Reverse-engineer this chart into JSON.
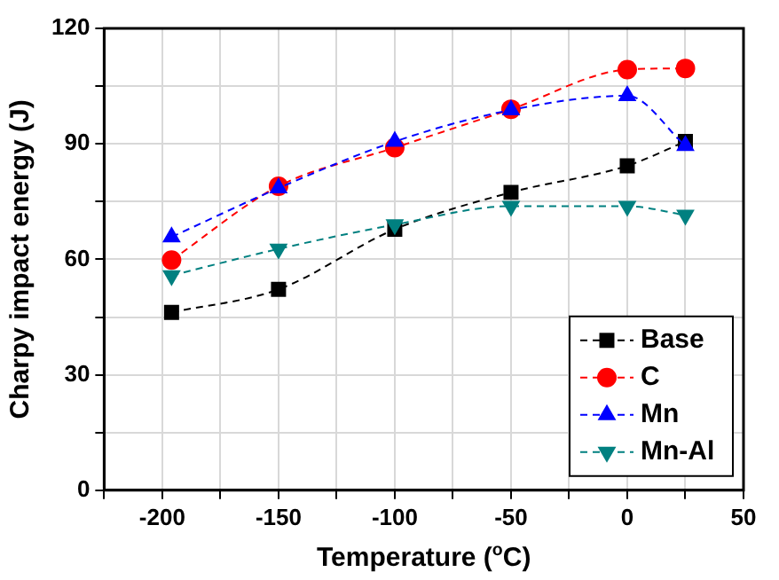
{
  "chart_data": {
    "type": "line",
    "xlabel": "Temperature ($^{o}$C)",
    "ylabel": "Charpy impact energy (J)",
    "x": [
      -196,
      -150,
      -100,
      -50,
      0,
      25
    ],
    "series": [
      {
        "name": "Base",
        "color": "#000000",
        "marker": "square",
        "values": [
          46.2,
          52.2,
          67.8,
          77.4,
          84.3,
          90.6
        ]
      },
      {
        "name": "C",
        "color": "#ff0000",
        "marker": "circle",
        "values": [
          59.8,
          79,
          89,
          99,
          109.3,
          109.6
        ]
      },
      {
        "name": "Mn",
        "color": "#0000ff",
        "marker": "triangle",
        "values": [
          65.8,
          78.5,
          90.6,
          98.8,
          102.5,
          89.5
        ]
      },
      {
        "name": "Mn-Al",
        "color": "#008080",
        "marker": "triangle-down",
        "values": [
          55.8,
          62.7,
          69,
          73.8,
          73.8,
          71.5
        ]
      }
    ],
    "xlim": [
      -225,
      50
    ],
    "xticks": [
      {
        "value": -225,
        "label": null
      },
      -200,
      {
        "value": -175,
        "label": null
      },
      -150,
      {
        "value": -125,
        "label": null
      },
      -100,
      {
        "value": -75,
        "label": null
      },
      -50,
      {
        "value": -25,
        "label": null
      },
      0,
      {
        "value": 25,
        "label": null
      },
      50
    ],
    "ylim": [
      0,
      120
    ],
    "yticks": [
      0,
      {
        "value": 15,
        "label": null
      },
      30,
      {
        "value": 45,
        "label": null
      },
      60,
      {
        "value": 75,
        "label": null
      },
      90,
      {
        "value": 105,
        "label": null
      },
      120
    ],
    "grid": true,
    "legend": "bottom right",
    "line_style": "dashed"
  }
}
